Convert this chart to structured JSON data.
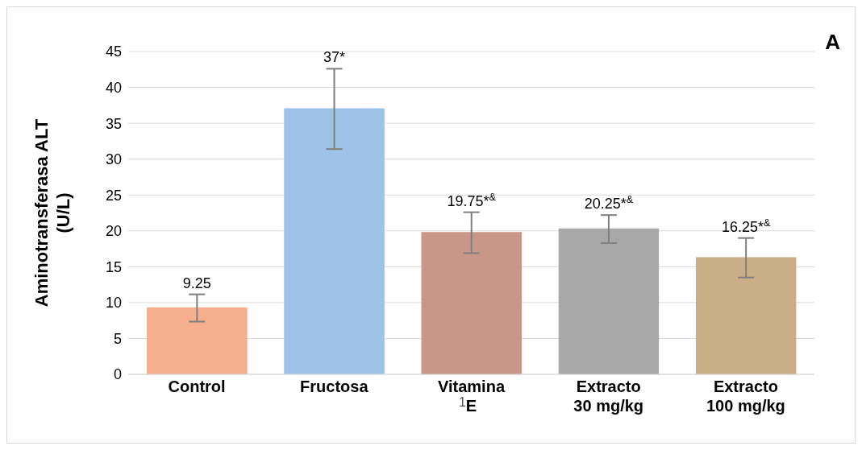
{
  "chart_data": {
    "type": "bar",
    "ylabel": "Aminotransferasa ALT (U/L)",
    "categories": [
      "Control",
      "Fructosa",
      "Vitamina E",
      "Extracto 30 mg/kg",
      "Extracto 100 mg/kg"
    ],
    "values": [
      9.25,
      37,
      19.75,
      20.25,
      16.25
    ],
    "errors": [
      1.9,
      5.6,
      2.85,
      1.95,
      2.75
    ],
    "value_labels": [
      "9.25",
      "37*",
      "19.75*$^{&}$",
      "20.25*$^{&}$",
      "16.25*$^{&}$"
    ],
    "colors": [
      "#f5ae8e",
      "#9fc2e8",
      "#c9978a",
      "#a8a8a8",
      "#c9ae88"
    ],
    "ylim": [
      0,
      45
    ],
    "yticks": [
      0,
      5,
      10,
      15,
      20,
      25,
      30,
      35,
      40,
      45
    ],
    "grid": "y",
    "annotations": [
      "A",
      "1"
    ]
  }
}
